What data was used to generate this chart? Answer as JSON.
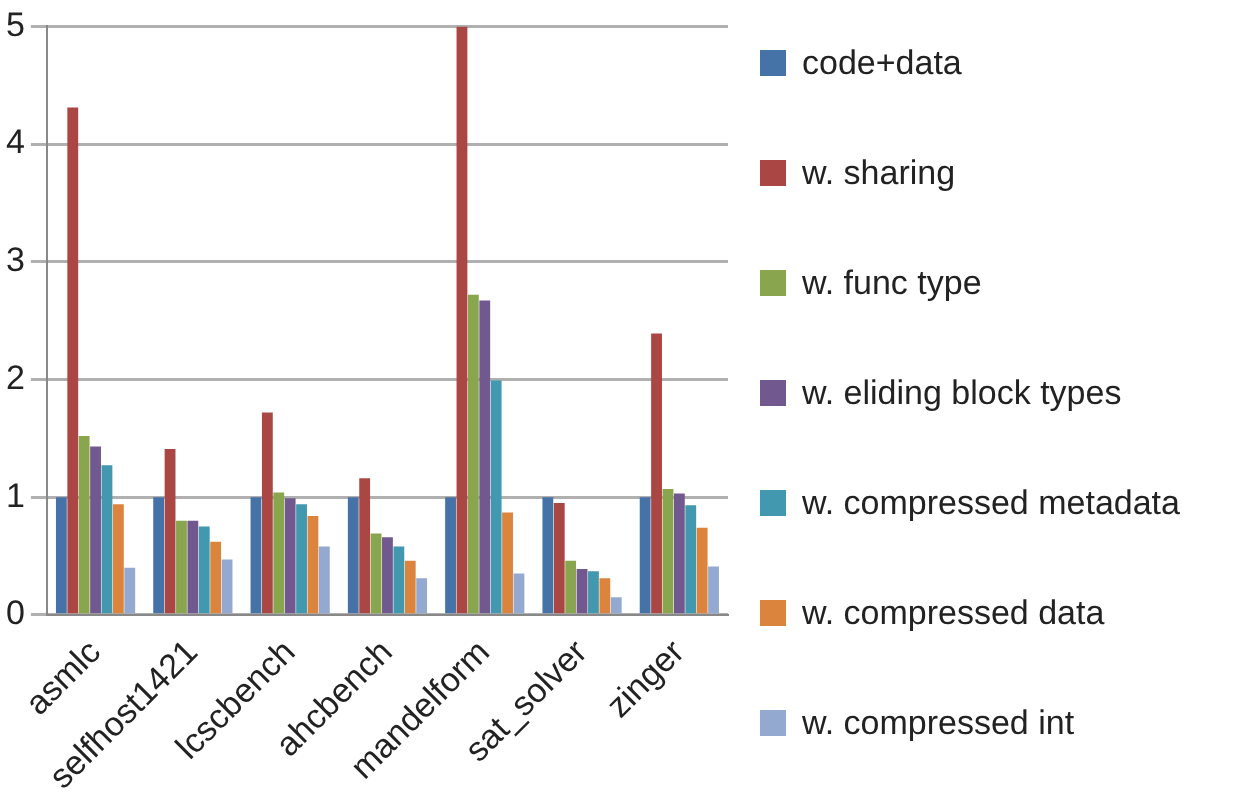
{
  "chart_data": {
    "type": "bar",
    "categories": [
      "asmlc",
      "selfhost1421",
      "lcscbench",
      "ahcbench",
      "mandelform",
      "sat_solver",
      "zinger"
    ],
    "series": [
      {
        "name": "code+data",
        "color": "#4572a7",
        "values": [
          1,
          1,
          1,
          1,
          1,
          1,
          1
        ]
      },
      {
        "name": "w. sharing",
        "color": "#aa4643",
        "values": [
          4.31,
          1.41,
          1.72,
          1.16,
          5.0,
          0.95,
          2.39
        ]
      },
      {
        "name": "w. func type",
        "color": "#89a54e",
        "values": [
          1.52,
          0.8,
          1.04,
          0.69,
          2.72,
          0.46,
          1.07
        ]
      },
      {
        "name": "w. eliding block types",
        "color": "#71588f",
        "values": [
          1.43,
          0.8,
          0.99,
          0.66,
          2.67,
          0.39,
          1.03
        ]
      },
      {
        "name": "w. compressed metadata",
        "color": "#4198af",
        "values": [
          1.27,
          0.75,
          0.94,
          0.58,
          1.99,
          0.37,
          0.93
        ]
      },
      {
        "name": "w. compressed data",
        "color": "#db843d",
        "values": [
          0.94,
          0.62,
          0.84,
          0.46,
          0.87,
          0.31,
          0.74
        ]
      },
      {
        "name": "w. compressed int",
        "color": "#93a9cf",
        "values": [
          0.4,
          0.47,
          0.58,
          0.31,
          0.35,
          0.15,
          0.41
        ]
      }
    ],
    "ylim": [
      0,
      5
    ],
    "yticks": [
      0,
      1,
      2,
      3,
      4,
      5
    ],
    "grid": "y",
    "legend": "right"
  }
}
